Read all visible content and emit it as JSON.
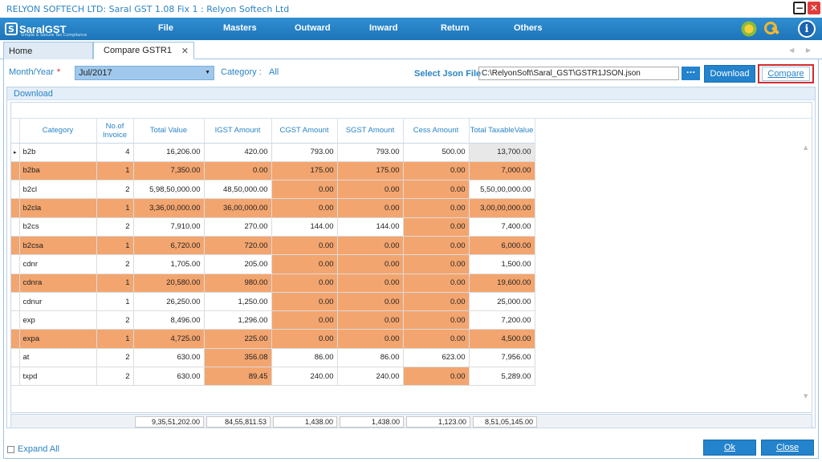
{
  "window": {
    "title": "RELYON SOFTECH LTD: Saral GST  1.08 Fix 1 : Relyon Softech Ltd"
  },
  "logo": {
    "text": "SaralGST",
    "tagline": "Simple & Secure Tax Compliance"
  },
  "menu": [
    {
      "label": "File"
    },
    {
      "label": "Masters"
    },
    {
      "label": "Outward"
    },
    {
      "label": "Inward"
    },
    {
      "label": "Return"
    },
    {
      "label": "Others"
    }
  ],
  "tabs": {
    "home": "Home",
    "active": "Compare GSTR1",
    "close": "✕"
  },
  "filters": {
    "month_label": "Month/Year",
    "month_value": "Jul/2017",
    "category_label": "Category :",
    "category_value": "All",
    "json_label": "Select Json File",
    "json_value": "C:\\RelyonSoft\\Saral_GST\\GSTR1JSON.json",
    "browse": "...",
    "download": "Download",
    "compare": "Compare"
  },
  "panel": {
    "title": "Download"
  },
  "grid": {
    "headers": {
      "category": "Category",
      "invoice": "No.of Invoice",
      "total": "Total Value",
      "igst": "IGST Amount",
      "cgst": "CGST Amount",
      "sgst": "SGST Amount",
      "cess": "Cess Amount",
      "taxable": "Total TaxableValue"
    },
    "rows": [
      {
        "category": "b2b",
        "invoice": "4",
        "total": "16,206.00",
        "igst": "420.00",
        "cgst": "793.00",
        "sgst": "793.00",
        "cess": "500.00",
        "taxable": "13,700.00"
      },
      {
        "category": "b2ba",
        "invoice": "1",
        "total": "7,350.00",
        "igst": "0.00",
        "cgst": "175.00",
        "sgst": "175.00",
        "cess": "0.00",
        "taxable": "7,000.00"
      },
      {
        "category": "b2cl",
        "invoice": "2",
        "total": "5,98,50,000.00",
        "igst": "48,50,000.00",
        "cgst": "0.00",
        "sgst": "0.00",
        "cess": "0.00",
        "taxable": "5,50,00,000.00"
      },
      {
        "category": "b2cla",
        "invoice": "1",
        "total": "3,36,00,000.00",
        "igst": "36,00,000.00",
        "cgst": "0.00",
        "sgst": "0.00",
        "cess": "0.00",
        "taxable": "3,00,00,000.00"
      },
      {
        "category": "b2cs",
        "invoice": "2",
        "total": "7,910.00",
        "igst": "270.00",
        "cgst": "144.00",
        "sgst": "144.00",
        "cess": "0.00",
        "taxable": "7,400.00"
      },
      {
        "category": "b2csa",
        "invoice": "1",
        "total": "6,720.00",
        "igst": "720.00",
        "cgst": "0.00",
        "sgst": "0.00",
        "cess": "0.00",
        "taxable": "6,000.00"
      },
      {
        "category": "cdnr",
        "invoice": "2",
        "total": "1,705.00",
        "igst": "205.00",
        "cgst": "0.00",
        "sgst": "0.00",
        "cess": "0.00",
        "taxable": "1,500.00"
      },
      {
        "category": "cdnra",
        "invoice": "1",
        "total": "20,580.00",
        "igst": "980.00",
        "cgst": "0.00",
        "sgst": "0.00",
        "cess": "0.00",
        "taxable": "19,600.00"
      },
      {
        "category": "cdnur",
        "invoice": "1",
        "total": "26,250.00",
        "igst": "1,250.00",
        "cgst": "0.00",
        "sgst": "0.00",
        "cess": "0.00",
        "taxable": "25,000.00"
      },
      {
        "category": "exp",
        "invoice": "2",
        "total": "8,496.00",
        "igst": "1,296.00",
        "cgst": "0.00",
        "sgst": "0.00",
        "cess": "0.00",
        "taxable": "7,200.00"
      },
      {
        "category": "expa",
        "invoice": "1",
        "total": "4,725.00",
        "igst": "225.00",
        "cgst": "0.00",
        "sgst": "0.00",
        "cess": "0.00",
        "taxable": "4,500.00"
      },
      {
        "category": "at",
        "invoice": "2",
        "total": "630.00",
        "igst": "356.08",
        "cgst": "86.00",
        "sgst": "86.00",
        "cess": "623.00",
        "taxable": "7,956.00"
      },
      {
        "category": "txpd",
        "invoice": "2",
        "total": "630.00",
        "igst": "89.45",
        "cgst": "240.00",
        "sgst": "240.00",
        "cess": "0.00",
        "taxable": "5,289.00"
      }
    ],
    "highlight_color": "#f3a56f",
    "totals": {
      "total": "9,35,51,202.00",
      "igst": "84,55,811.53",
      "cgst": "1,438.00",
      "sgst": "1,438.00",
      "cess": "1,123.00",
      "taxable": "8,51,05,145.00"
    }
  },
  "footer": {
    "expand_all": "Expand All",
    "ok": "Ok",
    "close": "Close"
  }
}
